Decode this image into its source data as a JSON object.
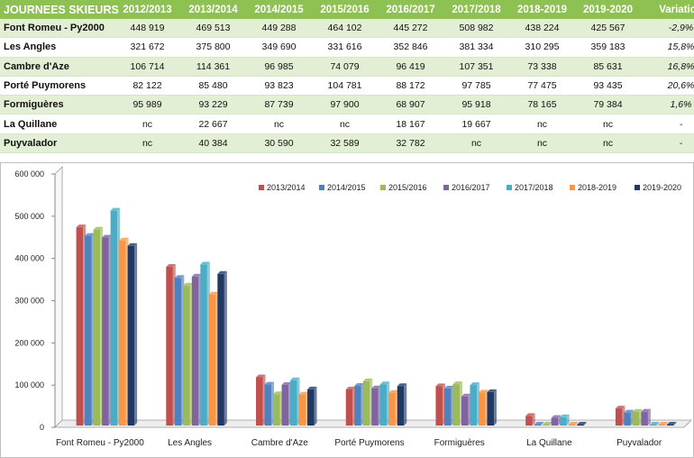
{
  "table": {
    "headers": [
      "JOURNEES SKIEURS",
      "2012/2013",
      "2013/2014",
      "2014/2015",
      "2015/2016",
      "2016/2017",
      "2017/2018",
      "2018-2019",
      "2019-2020",
      "Variation"
    ],
    "rows": [
      [
        "Font Romeu - Py2000",
        "448 919",
        "469 513",
        "449 288",
        "464 102",
        "445 272",
        "508 982",
        "438 224",
        "425 567",
        "-2,9%"
      ],
      [
        "Les Angles",
        "321 672",
        "375 800",
        "349 690",
        "331 616",
        "352 846",
        "381 334",
        "310 295",
        "359 183",
        "15,8%"
      ],
      [
        "Cambre d'Aze",
        "106 714",
        "114 361",
        "96 985",
        "74 079",
        "96 419",
        "107 351",
        "73 338",
        "85 631",
        "16,8%"
      ],
      [
        "Porté Puymorens",
        "82 122",
        "85 480",
        "93 823",
        "104 781",
        "88 172",
        "97 785",
        "77 475",
        "93 435",
        "20,6%"
      ],
      [
        "Formiguères",
        "95 989",
        "93 229",
        "87 739",
        "97 900",
        "68 907",
        "95 918",
        "78 165",
        "79 384",
        "1,6%"
      ],
      [
        "La Quillane",
        "nc",
        "22 667",
        "nc",
        "nc",
        "18 167",
        "19 667",
        "nc",
        "nc",
        "-"
      ],
      [
        "Puyvalador",
        "nc",
        "40 384",
        "30 590",
        "32 589",
        "32 782",
        "nc",
        "nc",
        "nc",
        "-"
      ]
    ]
  },
  "chart_data": {
    "type": "bar",
    "categories": [
      "Font Romeu - Py2000",
      "Les Angles",
      "Cambre d'Aze",
      "Porté Puymorens",
      "Formiguères",
      "La Quillane",
      "Puyvalador"
    ],
    "series": [
      {
        "name": "2013/2014",
        "color": "#c0504d",
        "values": [
          469513,
          375800,
          114361,
          85480,
          93229,
          22667,
          40384
        ]
      },
      {
        "name": "2014/2015",
        "color": "#4f81bd",
        "values": [
          449288,
          349690,
          96985,
          93823,
          87739,
          0,
          30590
        ]
      },
      {
        "name": "2015/2016",
        "color": "#9bbb59",
        "values": [
          464102,
          331616,
          74079,
          104781,
          97900,
          0,
          32589
        ]
      },
      {
        "name": "2016/2017",
        "color": "#8064a2",
        "values": [
          445272,
          352846,
          96419,
          88172,
          68907,
          18167,
          32782
        ]
      },
      {
        "name": "2017/2018",
        "color": "#4bacc6",
        "values": [
          508982,
          381334,
          107351,
          97785,
          95918,
          19667,
          0
        ]
      },
      {
        "name": "2018-2019",
        "color": "#f79646",
        "values": [
          438224,
          310295,
          73338,
          77475,
          78165,
          0,
          0
        ]
      },
      {
        "name": "2019-2020",
        "color": "#1f3864",
        "values": [
          425567,
          359183,
          85631,
          93435,
          79384,
          0,
          0
        ]
      }
    ],
    "ylim": [
      0,
      600000
    ],
    "yticks": [
      0,
      100000,
      200000,
      300000,
      400000,
      500000,
      600000
    ],
    "ytick_labels": [
      "0",
      "100 000",
      "200 000",
      "300 000",
      "400 000",
      "500 000",
      "600 000"
    ],
    "grid": false,
    "legend": "top-right"
  }
}
